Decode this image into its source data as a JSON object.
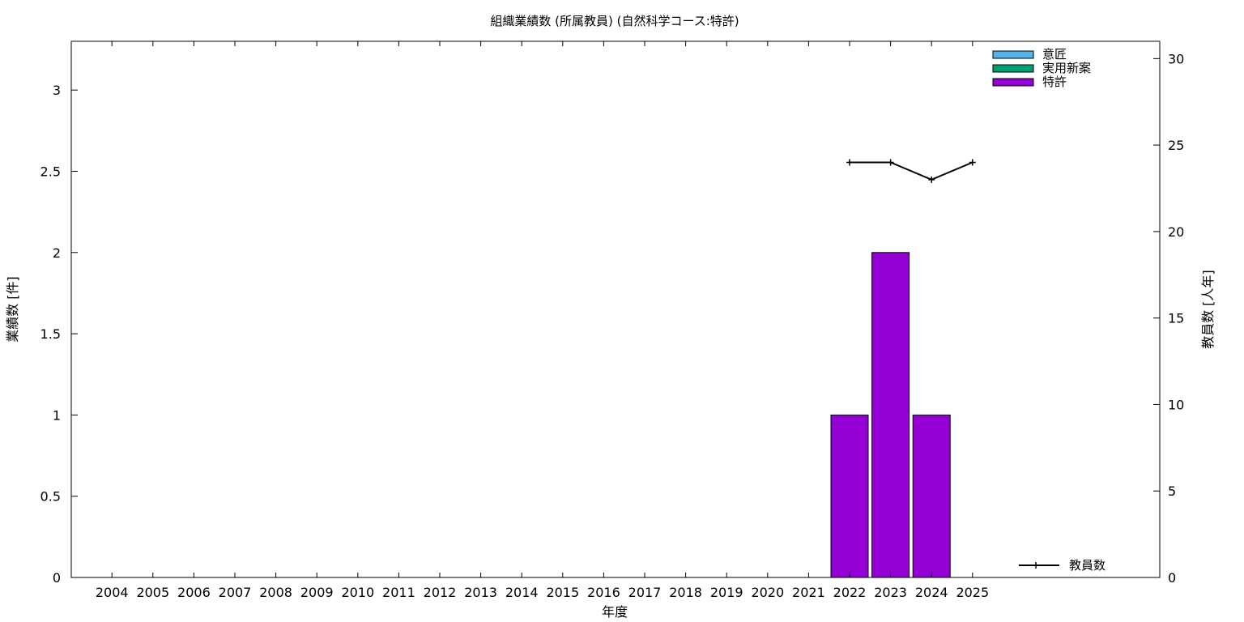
{
  "chart_data": {
    "type": "bar",
    "title": "組織業績数 (所属教員) (自然科学コース:特許)",
    "xlabel": "年度",
    "ylabel": "業績数 [件]",
    "y2label": "教員数 [人年]",
    "categories": [
      "2004",
      "2005",
      "2006",
      "2007",
      "2008",
      "2009",
      "2010",
      "2011",
      "2012",
      "2013",
      "2014",
      "2015",
      "2016",
      "2017",
      "2018",
      "2019",
      "2020",
      "2021",
      "2022",
      "2023",
      "2024",
      "2025"
    ],
    "ylim": [
      0,
      3.3
    ],
    "yticks": [
      "0",
      "0.5",
      "1",
      "1.5",
      "2",
      "2.5",
      "3"
    ],
    "y2lim": [
      0,
      31
    ],
    "y2ticks": [
      "0",
      "5",
      "10",
      "15",
      "20",
      "25",
      "30"
    ],
    "grid": false,
    "legend_placement": "top-right",
    "series": [
      {
        "name": "意匠",
        "kind": "bar",
        "color": "#56b4e9",
        "values": [
          0,
          0,
          0,
          0,
          0,
          0,
          0,
          0,
          0,
          0,
          0,
          0,
          0,
          0,
          0,
          0,
          0,
          0,
          0,
          0,
          0,
          0
        ]
      },
      {
        "name": "実用新案",
        "kind": "bar",
        "color": "#009e73",
        "values": [
          0,
          0,
          0,
          0,
          0,
          0,
          0,
          0,
          0,
          0,
          0,
          0,
          0,
          0,
          0,
          0,
          0,
          0,
          0,
          0,
          0,
          0
        ]
      },
      {
        "name": "特許",
        "kind": "bar",
        "color": "#9400d3",
        "values": [
          0,
          0,
          0,
          0,
          0,
          0,
          0,
          0,
          0,
          0,
          0,
          0,
          0,
          0,
          0,
          0,
          0,
          0,
          1,
          2,
          1,
          0
        ]
      },
      {
        "name": "教員数",
        "kind": "line",
        "axis": "y2",
        "color": "#000000",
        "points": [
          {
            "x": "2022",
            "y": 24
          },
          {
            "x": "2023",
            "y": 24
          },
          {
            "x": "2024",
            "y": 23
          },
          {
            "x": "2025",
            "y": 24
          }
        ]
      }
    ]
  }
}
